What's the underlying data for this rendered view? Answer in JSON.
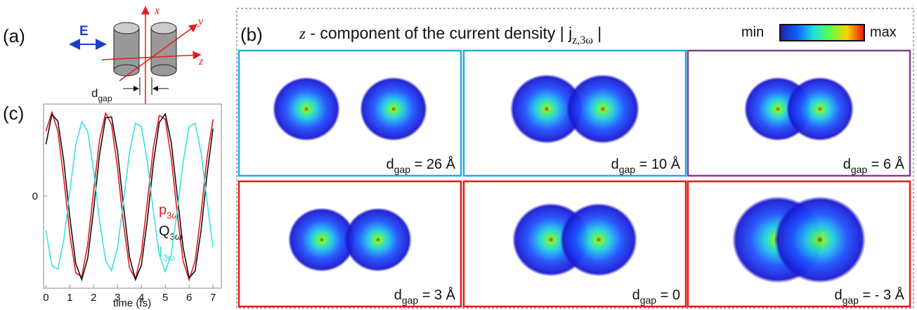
{
  "panel_a": {
    "label": "(a)",
    "field": "E",
    "axis_x": "x",
    "axis_y": "y",
    "axis_z": "z",
    "gap_symbol": "d",
    "gap_subscript": "gap"
  },
  "panel_b": {
    "label": "(b)",
    "title_var": "z",
    "title_text": " - component of the current density | j",
    "title_sub": "z,3ω",
    "title_end": " |",
    "colorbar_min": "min",
    "colorbar_max": "max",
    "label_symbol": "d",
    "label_subscript": "gap",
    "cells": [
      {
        "text": " = 26 Å",
        "border": "#29a9e0"
      },
      {
        "text": " = 10 Å",
        "border": "#29a9e0"
      },
      {
        "text": " = 6 Å",
        "border": "#7b3f98"
      },
      {
        "text": " = 3 Å",
        "border": "#e8191f"
      },
      {
        "text": " = 0",
        "border": "#e8191f"
      },
      {
        "text": " = - 3 Å",
        "border": "#e8191f"
      }
    ]
  },
  "chart_data": {
    "type": "line",
    "label": "(c)",
    "xlabel": "time (fs)",
    "x": [
      0,
      0.25,
      0.5,
      0.75,
      1,
      1.25,
      1.5,
      1.75,
      2,
      2.25,
      2.5,
      2.75,
      3,
      3.25,
      3.5,
      3.75,
      4,
      4.25,
      4.5,
      4.75,
      5,
      5.25,
      5.5,
      5.75,
      6,
      6.25,
      6.5,
      6.75,
      7
    ],
    "xlim": [
      -0.1,
      7.35
    ],
    "xticks": [
      0,
      1,
      2,
      3,
      4,
      5,
      6,
      7
    ],
    "ylim": [
      -1.1,
      1.1
    ],
    "yticks": [
      0
    ],
    "series": [
      {
        "name": "p",
        "subscript": "3ω",
        "color": "#e8191f",
        "values": [
          0.776,
          1,
          0.776,
          0.203,
          -0.46,
          -0.917,
          -0.963,
          -0.577,
          0.068,
          0.68,
          0.991,
          0.854,
          0.334,
          -0.336,
          -0.856,
          -0.991,
          -0.681,
          -0.067,
          0.578,
          0.963,
          0.917,
          0.46,
          -0.204,
          -0.777,
          -1,
          -0.775,
          -0.202,
          0.462,
          0.918
        ]
      },
      {
        "name": "Q",
        "subscript": "3ω",
        "color": "#111111",
        "values": [
          0.619,
          0.976,
          0.895,
          0.412,
          -0.255,
          -0.808,
          -0.998,
          -0.741,
          -0.151,
          0.506,
          0.937,
          0.947,
          0.532,
          -0.122,
          -0.722,
          -0.997,
          -0.825,
          -0.283,
          0.386,
          0.881,
          0.982,
          0.642,
          0.014,
          -0.62,
          -0.976,
          -0.895,
          -0.411,
          0.257,
          0.808
        ]
      },
      {
        "name": "I",
        "subscript": "3ω",
        "color": "#3ee0e0",
        "values": [
          -0.41,
          -0.83,
          -0.87,
          -0.52,
          0.06,
          0.61,
          0.89,
          0.77,
          0.3,
          -0.3,
          -0.77,
          -0.89,
          -0.61,
          -0.06,
          0.52,
          0.87,
          0.83,
          0.41,
          -0.18,
          -0.7,
          -0.9,
          -0.7,
          -0.18,
          0.41,
          0.83,
          0.87,
          0.52,
          -0.06,
          -0.61
        ]
      }
    ]
  }
}
